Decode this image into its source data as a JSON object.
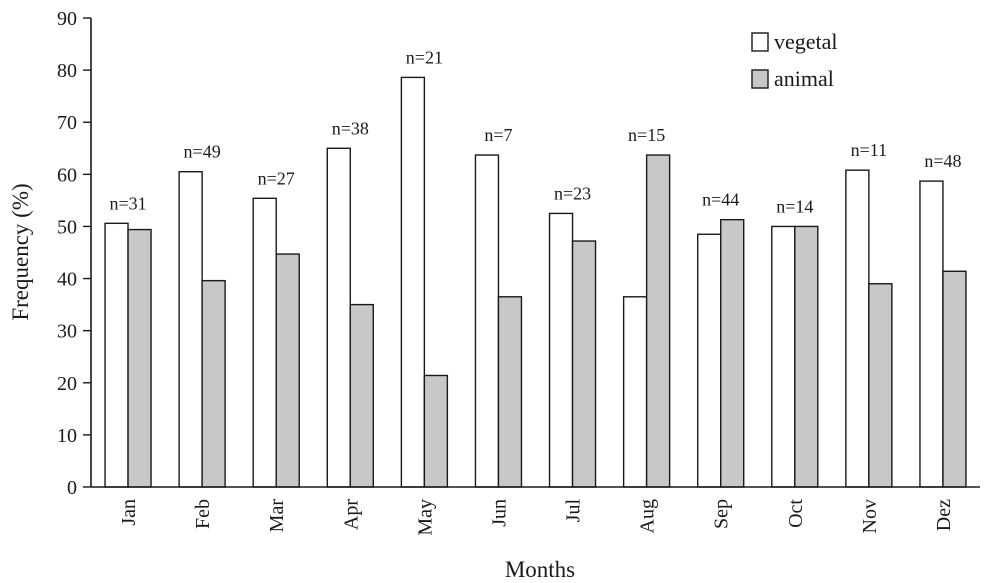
{
  "chart_data": {
    "type": "bar",
    "title": "",
    "xlabel": "Months",
    "ylabel": "Frequency (%)",
    "ylim": [
      0,
      90
    ],
    "yticks": [
      0,
      10,
      20,
      30,
      40,
      50,
      60,
      70,
      80,
      90
    ],
    "grid": false,
    "legend_position": "top-right",
    "categories": [
      "Jan",
      "Feb",
      "Mar",
      "Apr",
      "May",
      "Jun",
      "Jul",
      "Aug",
      "Sep",
      "Oct",
      "Nov",
      "Dez"
    ],
    "series": [
      {
        "name": "vegetal",
        "color": "#ffffff",
        "values": [
          50.6,
          60.5,
          55.4,
          65.0,
          78.6,
          63.7,
          52.5,
          36.5,
          48.5,
          50.0,
          60.8,
          58.7
        ]
      },
      {
        "name": "animal",
        "color": "#c8c8c8",
        "values": [
          49.4,
          39.6,
          44.7,
          35.0,
          21.4,
          36.5,
          47.2,
          63.7,
          51.3,
          50.0,
          39.0,
          41.4
        ]
      }
    ],
    "annotations": [
      "n=31",
      "n=49",
      "n=27",
      "n=38",
      "n=21",
      "n=7",
      "n=23",
      "n=15",
      "n=44",
      "n=14",
      "n=11",
      "n=48"
    ]
  }
}
